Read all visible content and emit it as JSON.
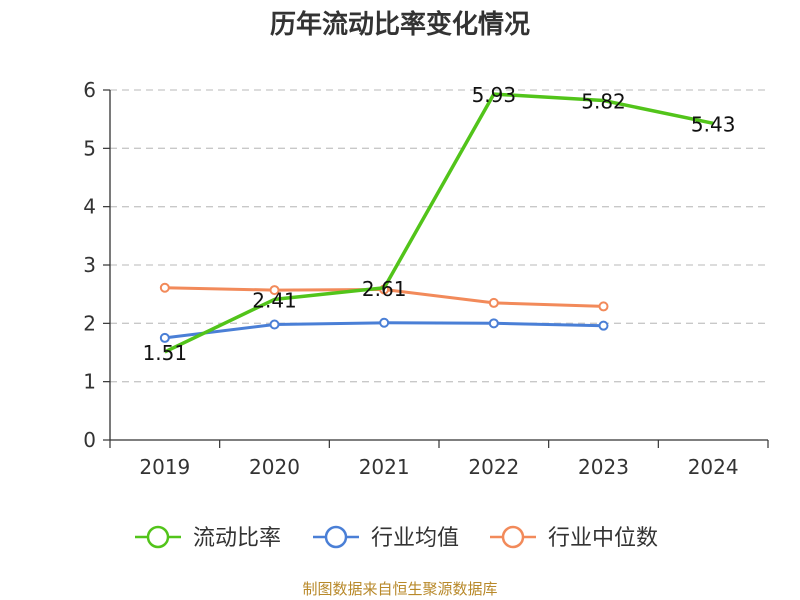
{
  "chart_data": {
    "type": "line",
    "title": "历年流动比率变化情况",
    "categories": [
      "2019",
      "2020",
      "2021",
      "2022",
      "2023",
      "2024"
    ],
    "ylim": [
      0,
      6
    ],
    "yticks": [
      "0",
      "1",
      "2",
      "3",
      "4",
      "5",
      "6"
    ],
    "grid": true,
    "legend_position": "bottom",
    "series": [
      {
        "name": "流动比率",
        "color": "#52c41a",
        "values": [
          1.51,
          2.41,
          2.61,
          5.93,
          5.82,
          5.43
        ],
        "labels": [
          "1.51",
          "2.41",
          "2.61",
          "5.93",
          "5.82",
          "5.43"
        ],
        "markers": false
      },
      {
        "name": "行业均值",
        "color": "#4a7fd6",
        "values": [
          1.75,
          1.98,
          2.01,
          2.0,
          1.96,
          null
        ],
        "markers": true
      },
      {
        "name": "行业中位数",
        "color": "#f28a5a",
        "values": [
          2.61,
          2.57,
          2.58,
          2.35,
          2.29,
          null
        ],
        "markers": true
      }
    ]
  },
  "source_note": "制图数据来自恒生聚源数据库"
}
